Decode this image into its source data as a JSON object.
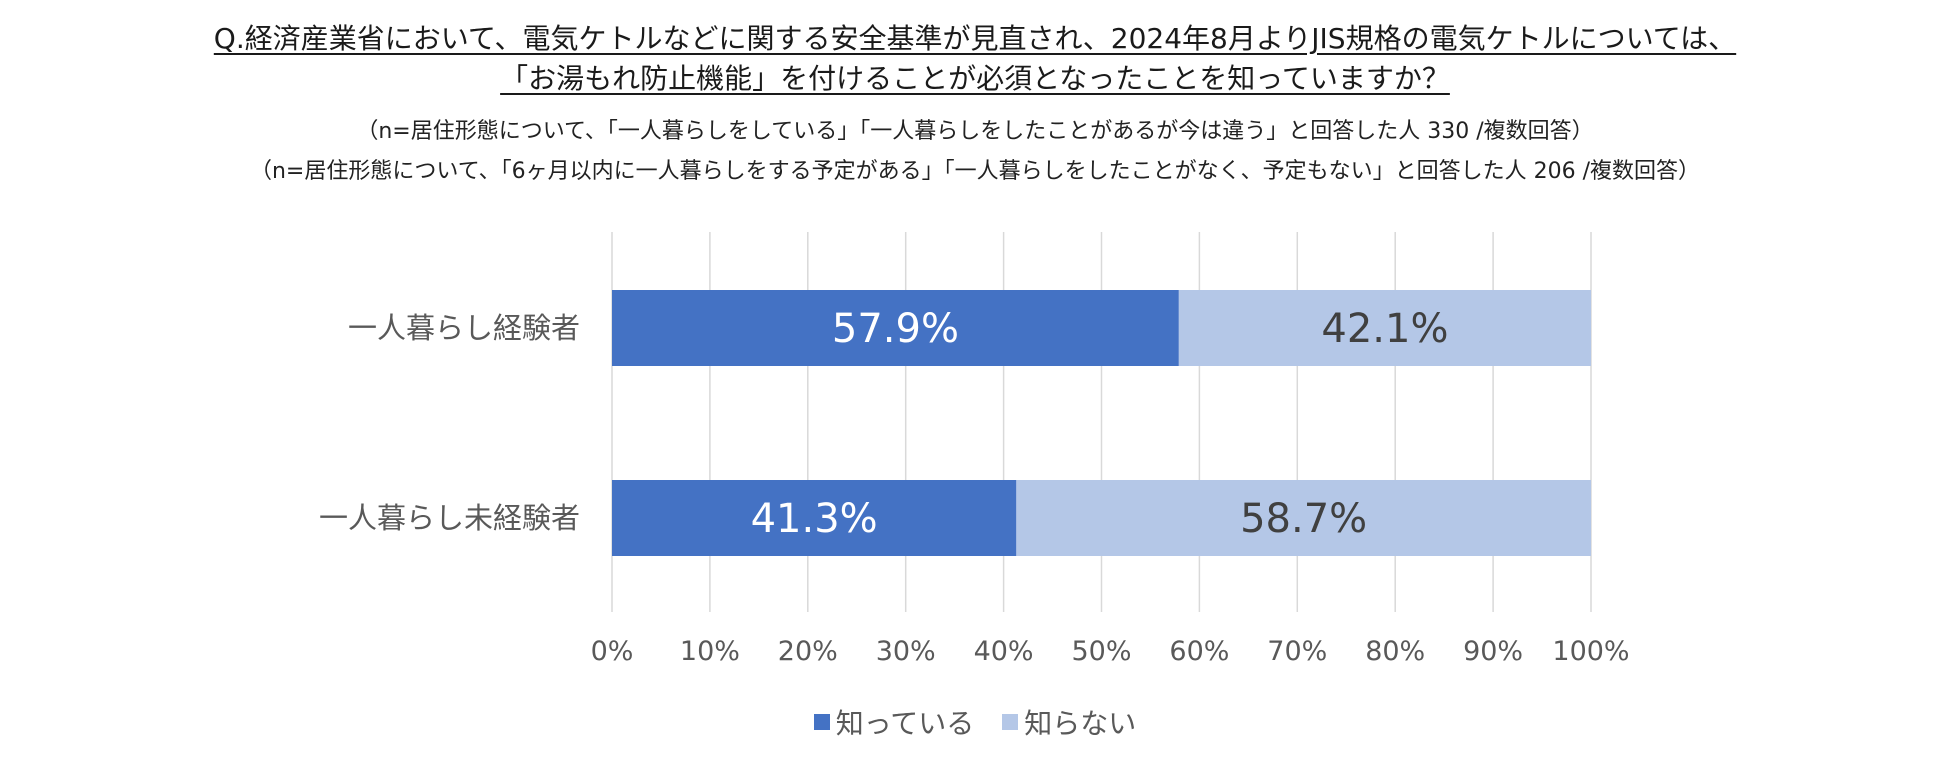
{
  "colors": {
    "known": "#4472c4",
    "unknown": "#b4c7e7",
    "grid": "#d9d9d9",
    "label_dark": "#404040",
    "label_light": "#ffffff"
  },
  "chart_data": {
    "type": "bar",
    "orientation": "horizontal",
    "stacked": true,
    "title": "Q.経済産業省において、電気ケトルなどに関する安全基準が見直され、2024年8月よりJIS規格の電気ケトルについては、「お湯もれ防止機能」を付けることが必須となったことを知っていますか？",
    "title_lines": [
      "Q.経済産業省において、電気ケトルなどに関する安全基準が見直され、2024年8月よりJIS規格の電気ケトルについては、",
      "「お湯もれ防止機能」を付けることが必須となったことを知っていますか？"
    ],
    "notes": [
      "（n=居住形態について、「一人暮らしをしている」「一人暮らしをしたことがあるが今は違う」と回答した人 330 /複数回答）",
      "（n=居住形態について、「6ヶ月以内に一人暮らしをする予定がある」「一人暮らしをしたことがなく、予定もない」と回答した人 206 /複数回答）"
    ],
    "categories": [
      "一人暮らし経験者",
      "一人暮らし未経験者"
    ],
    "series": [
      {
        "name": "知っている",
        "values": [
          57.9,
          41.3
        ],
        "labels": [
          "57.9%",
          "41.3%"
        ]
      },
      {
        "name": "知らない",
        "values": [
          42.1,
          58.7
        ],
        "labels": [
          "42.1%",
          "58.7%"
        ]
      }
    ],
    "xlim": [
      0,
      100
    ],
    "xticks": [
      "0%",
      "10%",
      "20%",
      "30%",
      "40%",
      "50%",
      "60%",
      "70%",
      "80%",
      "90%",
      "100%"
    ],
    "grid": true,
    "legend": "bottom"
  }
}
